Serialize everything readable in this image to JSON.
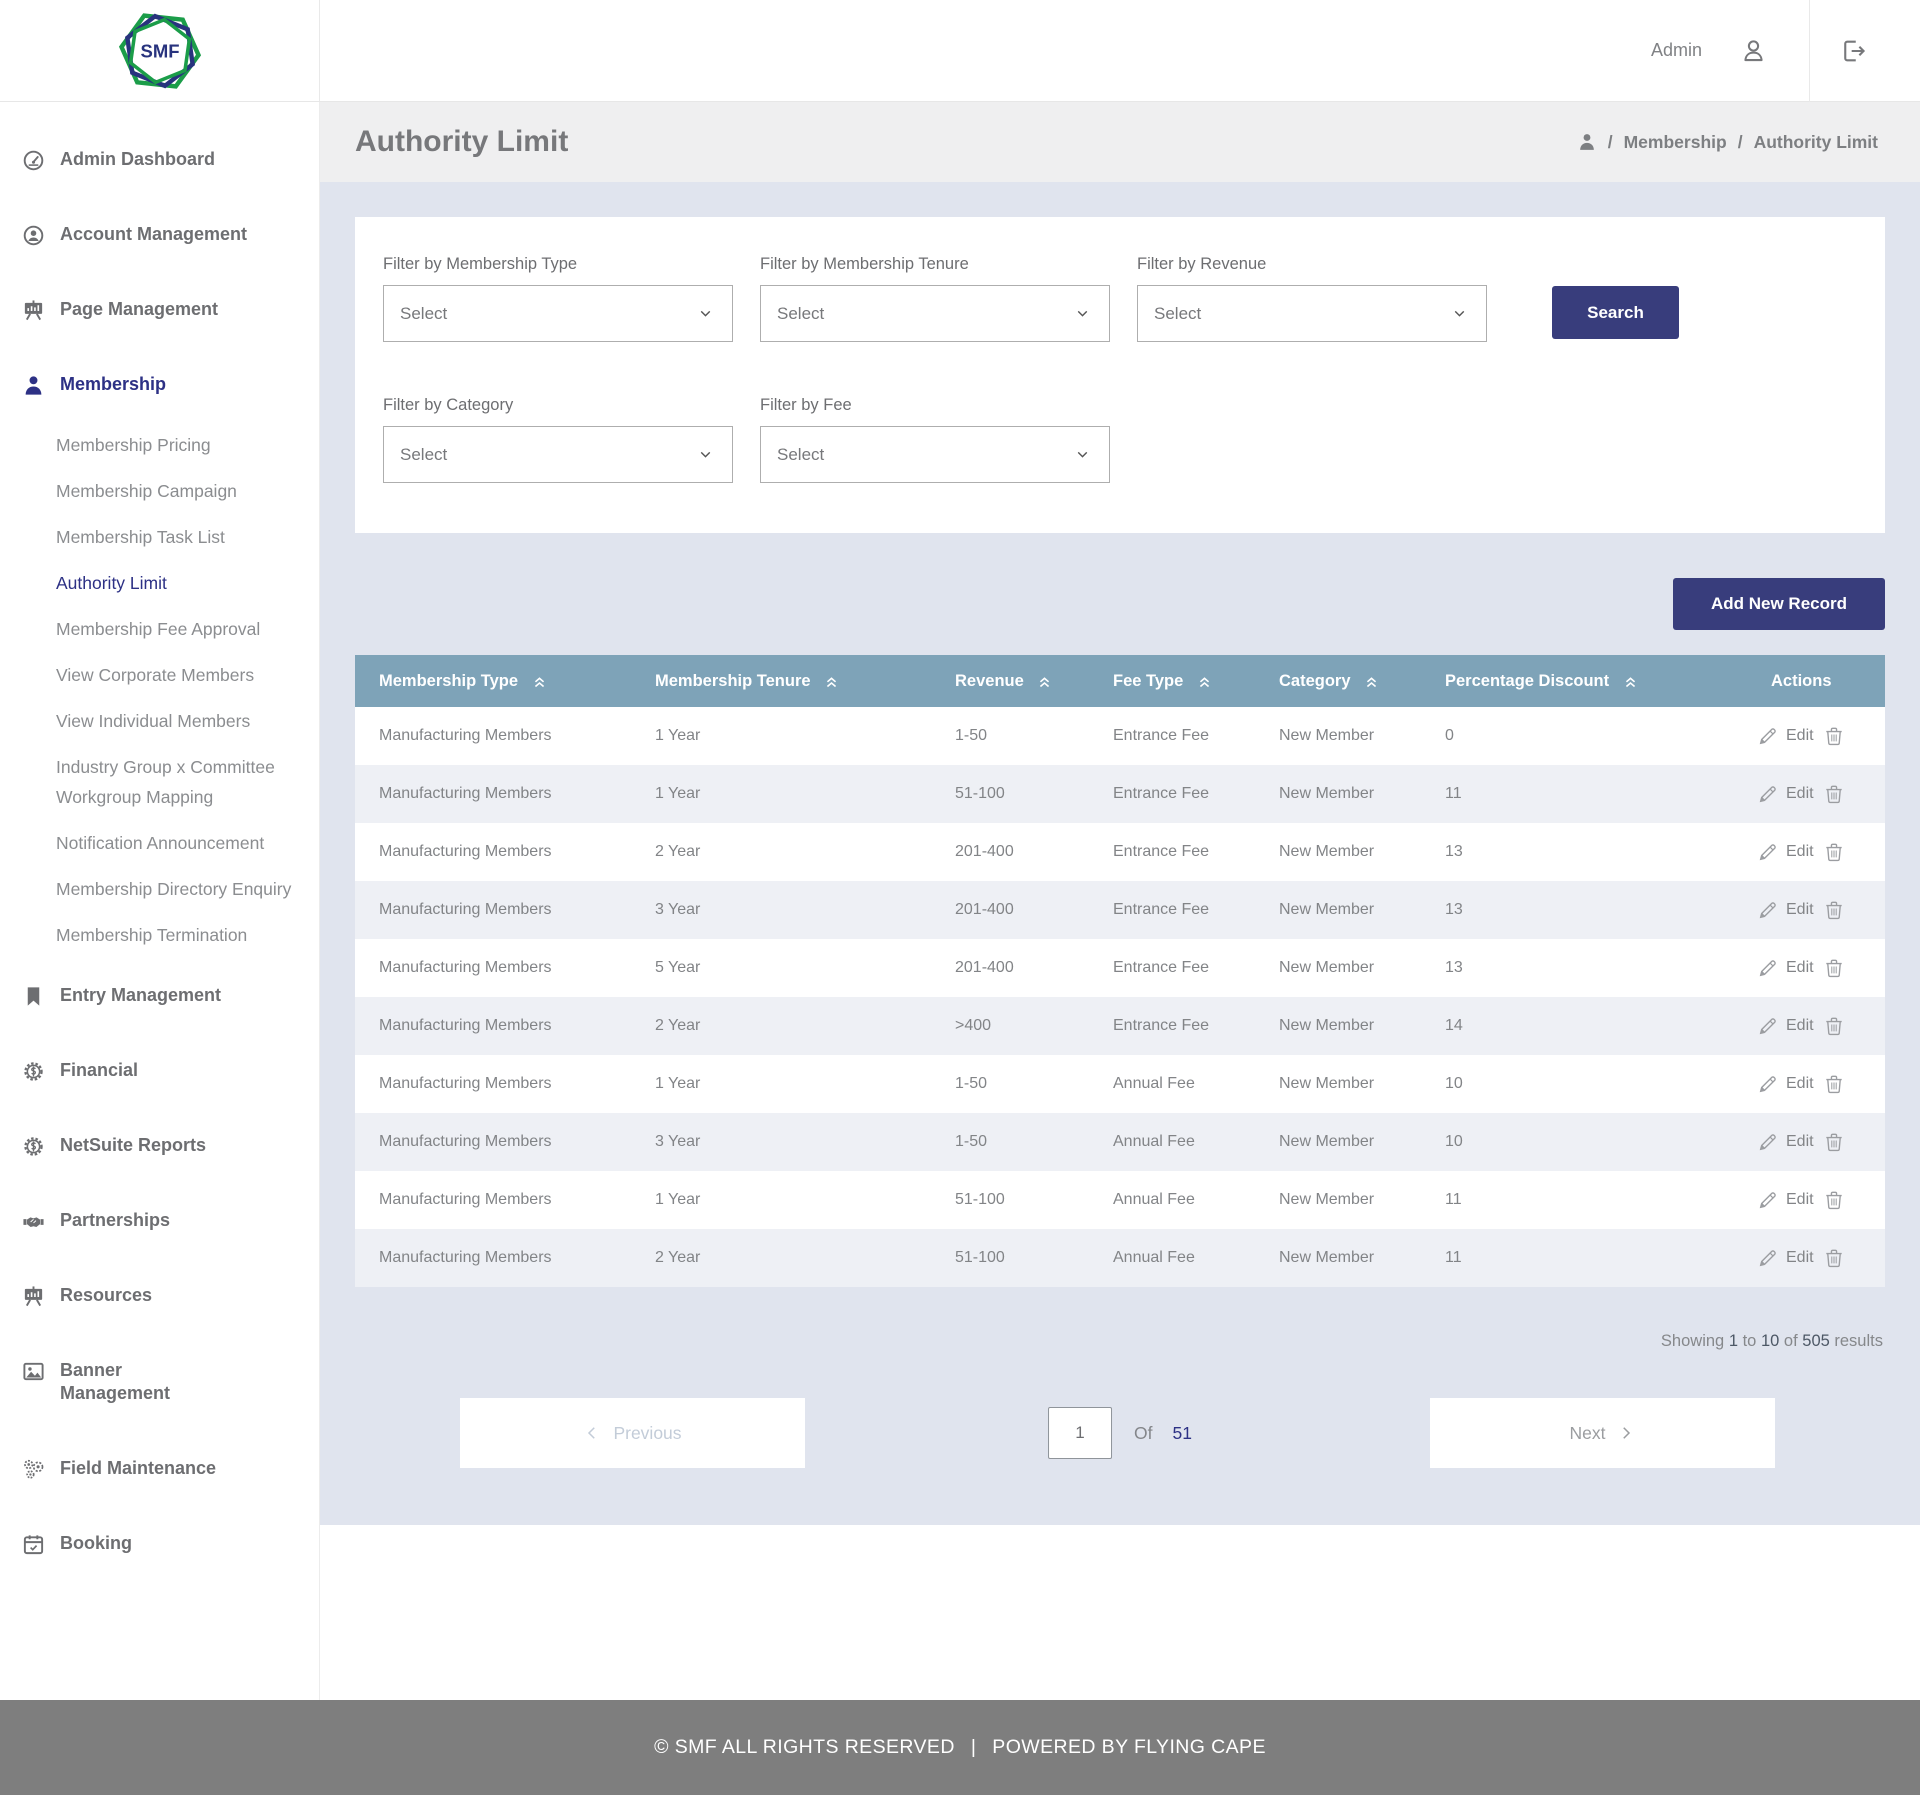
{
  "header": {
    "logo_text": "SMF",
    "user_label": "Admin"
  },
  "colors": {
    "accent_navy": "#383d7c",
    "active_link_navy": "#2d3185",
    "table_header_blue": "#7ea3b8",
    "content_background": "#e0e4ee",
    "footer_grey": "#7e7e7e"
  },
  "icons": [
    "dashboard-icon",
    "account-icon",
    "presentation-icon",
    "person-icon",
    "bookmark-icon",
    "finance-gear-icon",
    "handshake-icon",
    "image-icon",
    "gears-icon",
    "calendar-icon",
    "user-outline-icon",
    "logout-icon",
    "pencil-icon",
    "trash-icon",
    "sort-asc-icon",
    "chevron-down-icon",
    "chevron-left-icon",
    "chevron-right-icon"
  ],
  "sidebar": {
    "items": [
      {
        "label": "Admin Dashboard",
        "icon": "dashboard-icon",
        "level": "top",
        "active": false
      },
      {
        "label": "Account Management",
        "icon": "account-icon",
        "level": "top",
        "active": false
      },
      {
        "label": "Page Management",
        "icon": "presentation-icon",
        "level": "top",
        "active": false
      },
      {
        "label": "Membership",
        "icon": "person-icon",
        "level": "top",
        "active": true
      },
      {
        "label": "Membership Pricing",
        "level": "sub",
        "active": false
      },
      {
        "label": "Membership Campaign",
        "level": "sub",
        "active": false
      },
      {
        "label": "Membership Task List",
        "level": "sub",
        "active": false
      },
      {
        "label": "Authority Limit",
        "level": "sub",
        "active": true
      },
      {
        "label": "Membership Fee Approval",
        "level": "sub",
        "active": false
      },
      {
        "label": "View Corporate Members",
        "level": "sub",
        "active": false
      },
      {
        "label": "View Individual Members",
        "level": "sub",
        "active": false
      },
      {
        "label": "Industry Group x Committee Workgroup Mapping",
        "level": "sub",
        "active": false
      },
      {
        "label": "Notification Announcement",
        "level": "sub",
        "active": false
      },
      {
        "label": "Membership Directory Enquiry",
        "level": "sub",
        "active": false
      },
      {
        "label": "Membership Termination",
        "level": "sub",
        "active": false
      },
      {
        "label": "Entry Management",
        "icon": "bookmark-icon",
        "level": "top",
        "active": false
      },
      {
        "label": "Financial",
        "icon": "finance-gear-icon",
        "level": "top",
        "active": false
      },
      {
        "label": "NetSuite Reports",
        "icon": "finance-gear-icon",
        "level": "top",
        "active": false
      },
      {
        "label": "Partnerships",
        "icon": "handshake-icon",
        "level": "top",
        "active": false
      },
      {
        "label": "Resources",
        "icon": "presentation-icon",
        "level": "top",
        "active": false
      },
      {
        "label": "Banner Management",
        "icon": "image-icon",
        "level": "top",
        "active": false
      },
      {
        "label": "Field Maintenance",
        "icon": "gears-icon",
        "level": "top",
        "active": false
      },
      {
        "label": "Booking",
        "icon": "calendar-icon",
        "level": "top",
        "active": false
      }
    ]
  },
  "page": {
    "title": "Authority Limit",
    "breadcrumb_separator": "/",
    "breadcrumb": [
      "Membership",
      "Authority Limit"
    ]
  },
  "filters": {
    "groups": [
      {
        "label": "Filter by Membership Type",
        "value": "Select"
      },
      {
        "label": "Filter by Membership Tenure",
        "value": "Select"
      },
      {
        "label": "Filter by Revenue",
        "value": "Select"
      },
      {
        "label": "Filter by Category",
        "value": "Select"
      },
      {
        "label": "Filter by Fee",
        "value": "Select"
      }
    ],
    "search_label": "Search"
  },
  "actions_bar": {
    "add_label": "Add New Record"
  },
  "table": {
    "columns": [
      "Membership Type",
      "Membership Tenure",
      "Revenue",
      "Fee Type",
      "Category",
      "Percentage Discount",
      "Actions"
    ],
    "edit_label": "Edit",
    "rows": [
      [
        "Manufacturing Members",
        "1 Year",
        "1-50",
        "Entrance Fee",
        "New Member",
        "0"
      ],
      [
        "Manufacturing Members",
        "1 Year",
        "51-100",
        "Entrance Fee",
        "New Member",
        "11"
      ],
      [
        "Manufacturing Members",
        "2 Year",
        "201-400",
        "Entrance Fee",
        "New Member",
        "13"
      ],
      [
        "Manufacturing Members",
        "3 Year",
        "201-400",
        "Entrance Fee",
        "New Member",
        "13"
      ],
      [
        "Manufacturing Members",
        "5 Year",
        "201-400",
        "Entrance Fee",
        "New Member",
        "13"
      ],
      [
        "Manufacturing Members",
        "2 Year",
        ">400",
        "Entrance Fee",
        "New Member",
        "14"
      ],
      [
        "Manufacturing Members",
        "1 Year",
        "1-50",
        "Annual Fee",
        "New Member",
        "10"
      ],
      [
        "Manufacturing Members",
        "3 Year",
        "1-50",
        "Annual Fee",
        "New Member",
        "10"
      ],
      [
        "Manufacturing Members",
        "1 Year",
        "51-100",
        "Annual Fee",
        "New Member",
        "11"
      ],
      [
        "Manufacturing Members",
        "2 Year",
        "51-100",
        "Annual Fee",
        "New Member",
        "11"
      ]
    ]
  },
  "pagination": {
    "showing_label": "Showing",
    "from": "1",
    "to_label": "to",
    "to": "10",
    "of_results_label": "of",
    "total_results": "505",
    "results_label": "results",
    "previous_label": "Previous",
    "next_label": "Next",
    "current_page": "1",
    "of_label": "Of",
    "total_pages": "51"
  },
  "footer": {
    "copyright": "© SMF ALL RIGHTS RESERVED",
    "separator": "|",
    "powered": "POWERED BY FLYING CAPE"
  }
}
